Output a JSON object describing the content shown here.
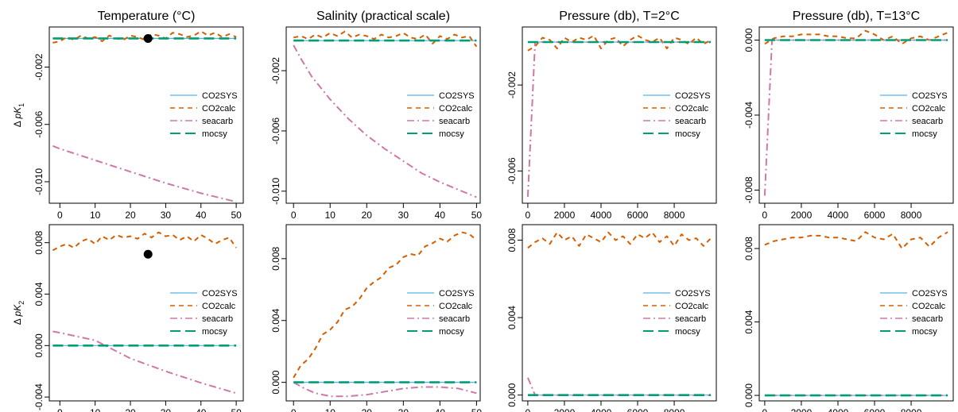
{
  "colors": {
    "CO2SYS": "#56B4E9",
    "CO2calc": "#D55E00",
    "seacarb": "#CC79A7",
    "mocsy": "#009E73",
    "point": "#000000"
  },
  "legend_names": [
    "CO2SYS",
    "CO2calc",
    "seacarb",
    "mocsy"
  ],
  "row_labels": [
    "Δ pK1",
    "Δ pK2"
  ],
  "chart_data": [
    {
      "type": "line",
      "title": "Temperature (°C)",
      "ylabel": "Δ pK1",
      "xlim": [
        -3,
        52
      ],
      "ylim": [
        -0.0115,
        0.0008
      ],
      "xticks": [
        0,
        10,
        20,
        30,
        40,
        50
      ],
      "yticks": [
        -0.002,
        -0.006,
        -0.01
      ],
      "ytick_labels": [
        "-0.002",
        "-0.006",
        "-0.010"
      ],
      "legend_position": "right",
      "marker": {
        "x": 25,
        "y": 0
      },
      "series": [
        {
          "name": "CO2SYS",
          "x": [
            0,
            50
          ],
          "y": [
            0,
            0
          ]
        },
        {
          "name": "CO2calc",
          "x": [
            -2,
            0,
            2,
            4,
            6,
            8,
            10,
            12,
            14,
            16,
            18,
            20,
            22,
            24,
            26,
            28,
            30,
            32,
            34,
            36,
            38,
            40,
            42,
            44,
            46,
            48,
            50
          ],
          "y": [
            -0.0003,
            -0.0002,
            0.0001,
            -0.0001,
            0.0002,
            0,
            0.0001,
            -0.0002,
            0.0002,
            0,
            -0.0001,
            0.0002,
            0.0001,
            -0.0001,
            0.0003,
            0.0002,
            0,
            0.0004,
            0.0003,
            0.0001,
            0.0002,
            0.0005,
            0.0002,
            0.0004,
            0.0001,
            0.0003,
            0.0001
          ]
        },
        {
          "name": "seacarb",
          "x": [
            -2,
            0,
            10,
            20,
            30,
            40,
            50
          ],
          "y": [
            -0.0075,
            -0.0077,
            -0.0085,
            -0.0093,
            -0.0101,
            -0.0108,
            -0.0114
          ]
        },
        {
          "name": "mocsy",
          "x": [
            -2,
            50
          ],
          "y": [
            0,
            0
          ]
        }
      ]
    },
    {
      "type": "line",
      "title": "Salinity (practical scale)",
      "ylabel": "",
      "xlim": [
        -2,
        51
      ],
      "ylim": [
        -0.0108,
        0.0009
      ],
      "xticks": [
        0,
        10,
        20,
        30,
        40,
        50
      ],
      "yticks": [
        -0.002,
        -0.006,
        -0.01
      ],
      "ytick_labels": [
        "-0.002",
        "-0.006",
        "-0.010"
      ],
      "legend_position": "right",
      "series": [
        {
          "name": "CO2SYS",
          "x": [
            0,
            50
          ],
          "y": [
            0,
            0
          ]
        },
        {
          "name": "CO2calc",
          "x": [
            0,
            2,
            4,
            6,
            8,
            10,
            12,
            14,
            16,
            18,
            20,
            22,
            24,
            26,
            28,
            30,
            32,
            34,
            36,
            38,
            40,
            42,
            44,
            46,
            48,
            50
          ],
          "y": [
            0.0002,
            0.0003,
            0.0001,
            0.0004,
            0.0002,
            0.0005,
            0.0003,
            0.0006,
            0.0002,
            0.0004,
            0.0003,
            0.0001,
            0.0004,
            0.0002,
            0.0003,
            0.0005,
            0.0002,
            0.0001,
            0.0004,
            -0.0002,
            0.0003,
            0.0001,
            0.0004,
            0.0002,
            0.0003,
            -0.0004
          ]
        },
        {
          "name": "seacarb",
          "x": [
            0,
            2,
            5,
            10,
            15,
            20,
            25,
            30,
            35,
            40,
            45,
            50
          ],
          "y": [
            -0.0003,
            -0.0012,
            -0.0024,
            -0.0039,
            -0.0052,
            -0.0063,
            -0.0072,
            -0.008,
            -0.0088,
            -0.0094,
            -0.0099,
            -0.0104
          ]
        },
        {
          "name": "mocsy",
          "x": [
            0,
            50
          ],
          "y": [
            0,
            0
          ]
        }
      ]
    },
    {
      "type": "line",
      "title": "Pressure (db), T=2°C",
      "ylabel": "",
      "xlim": [
        -300,
        10300
      ],
      "ylim": [
        -0.0075,
        0.0007
      ],
      "xticks": [
        0,
        2000,
        4000,
        6000,
        8000
      ],
      "yticks": [
        -0.002,
        -0.006
      ],
      "ytick_labels": [
        "-0.002",
        "-0.006"
      ],
      "legend_position": "right",
      "series": [
        {
          "name": "CO2SYS",
          "x": [
            0,
            10000
          ],
          "y": [
            0,
            0
          ]
        },
        {
          "name": "CO2calc",
          "x": [
            0,
            400,
            800,
            1200,
            1600,
            2000,
            2400,
            2800,
            3200,
            3600,
            4000,
            4400,
            4800,
            5200,
            5600,
            6000,
            6400,
            6800,
            7200,
            7600,
            8000,
            8400,
            8800,
            9200,
            9600,
            10000
          ],
          "y": [
            -0.0004,
            -0.0002,
            0.0002,
            0.0001,
            -0.0003,
            0.0002,
            0,
            0.0002,
            0.0001,
            0.0003,
            -0.0003,
            0.0001,
            0.0002,
            -0.0002,
            0.0001,
            0.0003,
            0.0001,
            0,
            0.0002,
            -0.0003,
            0.0002,
            0.0001,
            -0.0001,
            0.0002,
            -0.0001,
            0.0001
          ]
        },
        {
          "name": "seacarb",
          "x": [
            0,
            400,
            10000
          ],
          "y": [
            -0.0072,
            0,
            0
          ]
        },
        {
          "name": "mocsy",
          "x": [
            0,
            10000
          ],
          "y": [
            0,
            0
          ]
        }
      ]
    },
    {
      "type": "line",
      "title": "Pressure (db), T=13°C",
      "ylabel": "",
      "xlim": [
        -300,
        10300
      ],
      "ylim": [
        -0.0087,
        0.0007
      ],
      "xticks": [
        0,
        2000,
        4000,
        6000,
        8000
      ],
      "yticks": [
        0,
        -0.004,
        -0.008
      ],
      "ytick_labels": [
        "0.000",
        "-0.004",
        "-0.008"
      ],
      "legend_position": "right",
      "series": [
        {
          "name": "CO2SYS",
          "x": [
            0,
            10000
          ],
          "y": [
            0,
            0
          ]
        },
        {
          "name": "CO2calc",
          "x": [
            0,
            500,
            1000,
            1500,
            2000,
            2500,
            3000,
            3500,
            4000,
            4500,
            5000,
            5500,
            6000,
            6500,
            7000,
            7500,
            8000,
            8500,
            9000,
            9500,
            10000
          ],
          "y": [
            -0.0002,
            0.0001,
            0.0002,
            0.0002,
            0.0003,
            0.0003,
            0.0003,
            0.0002,
            0.0002,
            0.0001,
            0.0001,
            0.0005,
            0.0003,
            0,
            0.0002,
            -0.0002,
            0.0001,
            0.0002,
            0,
            0.0002,
            0.0004
          ]
        },
        {
          "name": "seacarb",
          "x": [
            0,
            400,
            10000
          ],
          "y": [
            -0.0083,
            0,
            0
          ]
        },
        {
          "name": "mocsy",
          "x": [
            0,
            10000
          ],
          "y": [
            0,
            0
          ]
        }
      ]
    },
    {
      "type": "line",
      "title": "",
      "ylabel": "Δ pK2",
      "xlim": [
        -3,
        52
      ],
      "ylim": [
        -0.0043,
        0.0094
      ],
      "xticks": [
        0,
        10,
        20,
        30,
        40,
        50
      ],
      "yticks": [
        -0.004,
        0,
        0.004,
        0.008
      ],
      "ytick_labels": [
        "-0.004",
        "0.000",
        "0.004",
        "0.008"
      ],
      "legend_position": "right",
      "marker": {
        "x": 25,
        "y": 0.0071
      },
      "series": [
        {
          "name": "CO2SYS",
          "x": [
            -2,
            50
          ],
          "y": [
            0,
            0
          ]
        },
        {
          "name": "CO2calc",
          "x": [
            -2,
            0,
            2,
            4,
            6,
            8,
            10,
            12,
            14,
            16,
            18,
            20,
            22,
            24,
            26,
            28,
            30,
            32,
            34,
            36,
            38,
            40,
            42,
            44,
            46,
            48,
            50
          ],
          "y": [
            0.0074,
            0.0077,
            0.0079,
            0.0076,
            0.0081,
            0.0083,
            0.0079,
            0.0085,
            0.0082,
            0.0086,
            0.0084,
            0.0085,
            0.0083,
            0.0087,
            0.0084,
            0.0088,
            0.0085,
            0.0086,
            0.0082,
            0.0085,
            0.0081,
            0.0086,
            0.0083,
            0.0079,
            0.0082,
            0.0084,
            0.0076
          ]
        },
        {
          "name": "seacarb",
          "x": [
            -2,
            0,
            10,
            20,
            30,
            40,
            50
          ],
          "y": [
            0.0011,
            0.001,
            0.0004,
            -0.001,
            -0.002,
            -0.0029,
            -0.0037
          ]
        },
        {
          "name": "mocsy",
          "x": [
            -2,
            50
          ],
          "y": [
            0,
            0
          ]
        }
      ]
    },
    {
      "type": "line",
      "title": "",
      "ylabel": "",
      "xlim": [
        -2,
        51
      ],
      "ylim": [
        -0.0012,
        0.0102
      ],
      "xticks": [
        0,
        10,
        20,
        30,
        40,
        50
      ],
      "yticks": [
        0,
        0.004,
        0.008
      ],
      "ytick_labels": [
        "0.000",
        "0.004",
        "0.008"
      ],
      "legend_position": "right",
      "series": [
        {
          "name": "CO2SYS",
          "x": [
            0,
            50
          ],
          "y": [
            0,
            0
          ]
        },
        {
          "name": "CO2calc",
          "x": [
            0,
            2,
            4,
            6,
            8,
            10,
            12,
            14,
            16,
            18,
            20,
            22,
            24,
            26,
            28,
            30,
            32,
            34,
            36,
            38,
            40,
            42,
            44,
            46,
            48,
            50
          ],
          "y": [
            0.0003,
            0.0011,
            0.0015,
            0.0022,
            0.0031,
            0.0034,
            0.0039,
            0.0047,
            0.0049,
            0.0054,
            0.0061,
            0.0065,
            0.0068,
            0.0074,
            0.0076,
            0.0081,
            0.0083,
            0.0082,
            0.0088,
            0.009,
            0.0093,
            0.0091,
            0.0095,
            0.0097,
            0.0096,
            0.0092
          ]
        },
        {
          "name": "seacarb",
          "x": [
            0,
            3,
            6,
            10,
            15,
            20,
            25,
            30,
            35,
            40,
            45,
            50
          ],
          "y": [
            0,
            -0.0004,
            -0.0007,
            -0.0009,
            -0.0009,
            -0.0008,
            -0.0006,
            -0.0004,
            -0.0003,
            -0.0003,
            -0.0004,
            -0.0007
          ]
        },
        {
          "name": "mocsy",
          "x": [
            0,
            50
          ],
          "y": [
            0,
            0
          ]
        }
      ]
    },
    {
      "type": "line",
      "title": "",
      "ylabel": "",
      "xlim": [
        -300,
        10300
      ],
      "ylim": [
        -0.0003,
        0.0088
      ],
      "xticks": [
        0,
        2000,
        4000,
        6000,
        8000
      ],
      "yticks": [
        0,
        0.004,
        0.008
      ],
      "ytick_labels": [
        "0.000",
        "0.004",
        "0.008"
      ],
      "legend_position": "right",
      "series": [
        {
          "name": "CO2SYS",
          "x": [
            0,
            10000
          ],
          "y": [
            0,
            0
          ]
        },
        {
          "name": "CO2calc",
          "x": [
            0,
            400,
            800,
            1200,
            1600,
            2000,
            2400,
            2800,
            3200,
            3600,
            4000,
            4400,
            4800,
            5200,
            5600,
            6000,
            6400,
            6800,
            7200,
            7600,
            8000,
            8400,
            8800,
            9200,
            9600,
            10000
          ],
          "y": [
            0.0076,
            0.0079,
            0.0081,
            0.0078,
            0.0084,
            0.008,
            0.0082,
            0.0077,
            0.0083,
            0.0081,
            0.0079,
            0.0084,
            0.008,
            0.0082,
            0.0078,
            0.0083,
            0.0081,
            0.0084,
            0.0079,
            0.0082,
            0.0077,
            0.0083,
            0.008,
            0.0081,
            0.0077,
            0.0081
          ]
        },
        {
          "name": "seacarb",
          "x": [
            0,
            400,
            10000
          ],
          "y": [
            0.0009,
            0,
            0
          ]
        },
        {
          "name": "mocsy",
          "x": [
            0,
            10000
          ],
          "y": [
            0,
            0
          ]
        }
      ]
    },
    {
      "type": "line",
      "title": "",
      "ylabel": "",
      "xlim": [
        -300,
        10300
      ],
      "ylim": [
        -0.0003,
        0.0093
      ],
      "xticks": [
        0,
        2000,
        4000,
        6000,
        8000
      ],
      "yticks": [
        0,
        0.004,
        0.008
      ],
      "ytick_labels": [
        "0.000",
        "0.004",
        "0.008"
      ],
      "legend_position": "right",
      "series": [
        {
          "name": "CO2SYS",
          "x": [
            0,
            10000
          ],
          "y": [
            0,
            0
          ]
        },
        {
          "name": "CO2calc",
          "x": [
            0,
            500,
            1000,
            1500,
            2000,
            2500,
            3000,
            3500,
            4000,
            4500,
            5000,
            5500,
            6000,
            6500,
            7000,
            7500,
            8000,
            8500,
            9000,
            9500,
            10000
          ],
          "y": [
            0.0082,
            0.0084,
            0.0085,
            0.0086,
            0.0086,
            0.0087,
            0.0087,
            0.0086,
            0.0086,
            0.0085,
            0.0084,
            0.0089,
            0.0086,
            0.0085,
            0.0088,
            0.008,
            0.0085,
            0.0086,
            0.0081,
            0.0086,
            0.0089
          ]
        },
        {
          "name": "seacarb",
          "x": [
            0,
            10000
          ],
          "y": [
            0,
            0
          ]
        },
        {
          "name": "mocsy",
          "x": [
            0,
            10000
          ],
          "y": [
            0,
            0
          ]
        }
      ]
    }
  ]
}
